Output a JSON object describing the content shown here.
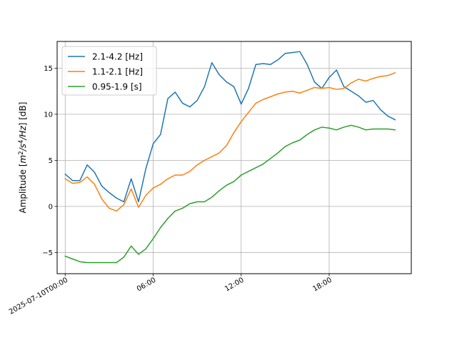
{
  "chart_data": {
    "type": "line",
    "title": "",
    "xlabel": "",
    "ylabel": "Amplitude [m²/s⁴/Hz] [dB]",
    "ylabel_parts": [
      "Amplitude [",
      "m",
      "2",
      "/",
      "s",
      "4",
      "/Hz",
      "] [dB]"
    ],
    "xlim": [
      -0.55,
      23.6
    ],
    "ylim": [
      -7.3,
      17.9
    ],
    "x_ticks": [
      0,
      6,
      12,
      18
    ],
    "x_tick_labels": [
      "2025-07-10T00:00",
      "06:00",
      "12:00",
      "18:00"
    ],
    "y_ticks": [
      -5,
      0,
      5,
      10,
      15
    ],
    "y_tick_labels": [
      "−5",
      "0",
      "5",
      "10",
      "15"
    ],
    "grid": true,
    "legend_position": "top-left",
    "colors": {
      "series0": "#1f77b4",
      "series1": "#ff7f0e",
      "series2": "#2ca02c",
      "grid": "#b0b0b0"
    },
    "x": [
      0,
      0.5,
      1,
      1.5,
      2,
      2.5,
      3,
      3.5,
      4,
      4.5,
      5,
      5.5,
      6,
      6.5,
      7,
      7.5,
      8,
      8.5,
      9,
      9.5,
      10,
      10.5,
      11,
      11.5,
      12,
      12.5,
      13,
      13.5,
      14,
      14.5,
      15,
      15.5,
      16,
      16.5,
      17,
      17.5,
      18,
      18.5,
      19,
      19.5,
      20,
      20.5,
      21,
      21.5,
      22,
      22.5
    ],
    "series": [
      {
        "name": "2.1-4.2 [Hz]",
        "values": [
          3.5,
          2.8,
          2.8,
          4.5,
          3.7,
          2.2,
          1.5,
          0.9,
          0.5,
          3.0,
          0.5,
          4.1,
          6.8,
          7.8,
          11.7,
          12.4,
          11.2,
          10.8,
          11.5,
          13.0,
          15.6,
          14.3,
          13.5,
          13.0,
          11.1,
          12.8,
          15.4,
          15.5,
          15.4,
          15.9,
          16.6,
          16.7,
          16.8,
          15.4,
          13.5,
          12.8,
          14.0,
          14.8,
          13.0,
          12.5,
          12.0,
          11.3,
          11.5,
          10.5,
          9.8,
          9.4
        ]
      },
      {
        "name": "1.1-2.1 [Hz]",
        "values": [
          3.0,
          2.5,
          2.6,
          3.2,
          2.4,
          0.8,
          -0.2,
          -0.5,
          0.2,
          1.9,
          -0.1,
          1.2,
          2.0,
          2.4,
          3.0,
          3.4,
          3.4,
          3.8,
          4.5,
          5.0,
          5.4,
          5.8,
          6.6,
          8.0,
          9.2,
          10.2,
          11.2,
          11.6,
          11.9,
          12.2,
          12.4,
          12.5,
          12.3,
          12.6,
          12.9,
          12.8,
          12.9,
          12.7,
          12.8,
          13.4,
          13.8,
          13.6,
          13.9,
          14.1,
          14.2,
          14.5
        ]
      },
      {
        "name": "0.95-1.9 [s]",
        "values": [
          -5.4,
          -5.7,
          -6.0,
          -6.1,
          -6.1,
          -6.1,
          -6.1,
          -6.1,
          -5.5,
          -4.3,
          -5.2,
          -4.6,
          -3.5,
          -2.3,
          -1.3,
          -0.5,
          -0.2,
          0.3,
          0.5,
          0.5,
          1.0,
          1.7,
          2.3,
          2.7,
          3.4,
          3.8,
          4.2,
          4.6,
          5.2,
          5.8,
          6.5,
          6.9,
          7.2,
          7.8,
          8.3,
          8.6,
          8.5,
          8.3,
          8.6,
          8.8,
          8.6,
          8.3,
          8.4,
          8.4,
          8.4,
          8.3
        ]
      }
    ]
  }
}
